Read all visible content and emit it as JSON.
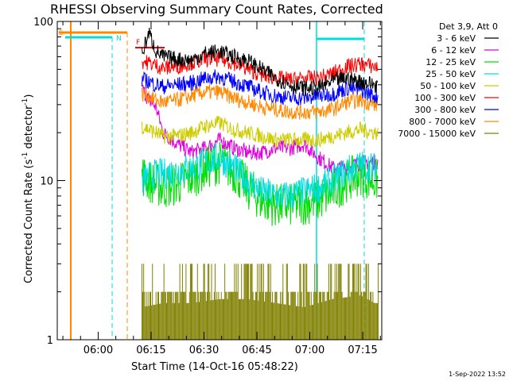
{
  "chart_data": {
    "type": "line",
    "title": "RHESSI Observing Summary Count Rates, Corrected",
    "xlabel": "Start Time (14-Oct-16 05:48:22)",
    "ylabel_main": "Corrected Count Rate (s",
    "ylabel_sup1": "-1",
    "ylabel_mid": " detector",
    "ylabel_sup2": "-1",
    "ylabel_end": ")",
    "y_scale": "log",
    "ylim": [
      1,
      100
    ],
    "xlim_minutes": [
      0,
      92
    ],
    "x_ticks": [
      {
        "label": "06:00",
        "minute": 11.6
      },
      {
        "label": "06:15",
        "minute": 26.6
      },
      {
        "label": "06:30",
        "minute": 41.6
      },
      {
        "label": "06:45",
        "minute": 56.6
      },
      {
        "label": "07:00",
        "minute": 71.6
      },
      {
        "label": "07:15",
        "minute": 86.6
      }
    ],
    "y_ticks": [
      {
        "label": "1",
        "value": 1
      },
      {
        "label": "10",
        "value": 10
      },
      {
        "label": "100",
        "value": 100
      }
    ],
    "legend_header": "Det 3,9, Att 0",
    "legend_position": "right",
    "series": [
      {
        "name": "3 - 6 keV",
        "color": "#000000",
        "x": [
          24,
          26,
          28,
          30,
          34,
          38,
          42,
          46,
          50,
          54,
          58,
          62,
          66,
          70,
          74,
          78,
          82,
          86,
          90
        ],
        "y": [
          62,
          85,
          65,
          60,
          58,
          57,
          63,
          65,
          60,
          57,
          50,
          44,
          40,
          38,
          38,
          42,
          44,
          42,
          40
        ]
      },
      {
        "name": "6 - 12 keV",
        "color": "#dd00dd",
        "x": [
          24,
          26,
          28,
          30,
          34,
          38,
          42,
          46,
          50,
          54,
          58,
          62,
          66,
          70,
          74,
          78,
          82,
          86,
          90
        ],
        "y": [
          38,
          32,
          29,
          20,
          17,
          15,
          16,
          18,
          16,
          15,
          15,
          16,
          16,
          17,
          14,
          12,
          12,
          13,
          13
        ]
      },
      {
        "name": "12 - 25 keV",
        "color": "#00dd00",
        "x": [
          24,
          26,
          28,
          30,
          34,
          38,
          42,
          46,
          50,
          54,
          58,
          62,
          66,
          70,
          74,
          78,
          82,
          86,
          90
        ],
        "y": [
          11,
          10,
          9.5,
          9,
          9.5,
          10.5,
          12,
          13,
          11.5,
          9,
          7.5,
          7,
          7,
          7.2,
          7.5,
          8.5,
          10,
          11,
          10
        ]
      },
      {
        "name": "25 - 50 keV",
        "color": "#00dddd",
        "x": [
          24,
          26,
          28,
          30,
          34,
          38,
          42,
          46,
          50,
          54,
          58,
          62,
          66,
          70,
          74,
          78,
          82,
          86,
          90
        ],
        "y": [
          10,
          10.5,
          11,
          11,
          11.5,
          12,
          13,
          14,
          12,
          10,
          8.5,
          8,
          8,
          8.5,
          9,
          10,
          11.5,
          12.5,
          12
        ]
      },
      {
        "name": "50 - 100 keV",
        "color": "#cccc00",
        "x": [
          24,
          26,
          28,
          30,
          34,
          38,
          42,
          46,
          50,
          54,
          58,
          62,
          66,
          70,
          74,
          78,
          82,
          86,
          90
        ],
        "y": [
          22,
          21,
          20,
          19,
          19,
          20,
          22,
          23,
          21,
          20,
          19,
          18,
          18,
          18,
          18,
          19,
          20,
          21,
          20
        ]
      },
      {
        "name": "100 - 300 keV",
        "color": "#ff0000",
        "x": [
          24,
          26,
          28,
          30,
          34,
          38,
          42,
          46,
          50,
          54,
          58,
          62,
          66,
          70,
          74,
          78,
          82,
          86,
          90
        ],
        "y": [
          56,
          55,
          53,
          51,
          52,
          55,
          58,
          58,
          55,
          50,
          46,
          44,
          43,
          44,
          44,
          47,
          52,
          54,
          52
        ]
      },
      {
        "name": "300 - 800 keV",
        "color": "#0000ff",
        "x": [
          24,
          26,
          28,
          30,
          34,
          38,
          42,
          46,
          50,
          54,
          58,
          62,
          66,
          70,
          74,
          78,
          82,
          86,
          90
        ],
        "y": [
          43,
          42,
          40,
          39,
          40,
          41,
          44,
          45,
          42,
          39,
          36,
          34,
          33,
          33,
          34,
          35,
          38,
          37,
          34
        ]
      },
      {
        "name": "800 - 7000 keV",
        "color": "#ff8800",
        "x": [
          24,
          26,
          28,
          30,
          34,
          38,
          42,
          46,
          50,
          54,
          58,
          62,
          66,
          70,
          74,
          78,
          82,
          86,
          90
        ],
        "y": [
          35,
          34,
          32,
          31,
          32,
          34,
          36,
          36,
          33,
          31,
          29,
          28,
          27,
          27,
          27,
          28,
          31,
          32,
          30
        ]
      },
      {
        "name": "7000 - 15000 keV",
        "color": "#808000",
        "x": [
          24,
          30,
          38,
          46,
          54,
          62,
          70,
          78,
          86,
          90
        ],
        "y": [
          1.6,
          1.7,
          1.7,
          1.8,
          1.8,
          1.7,
          1.6,
          1.8,
          1.9,
          1.7
        ]
      }
    ],
    "annotations": [
      {
        "text": "S",
        "color": "#ff8800"
      },
      {
        "text": "N",
        "color": "#00dddd"
      },
      {
        "text": "F",
        "color": "#ff0000"
      }
    ],
    "timestamp": "1-Sep-2022 13:52"
  }
}
